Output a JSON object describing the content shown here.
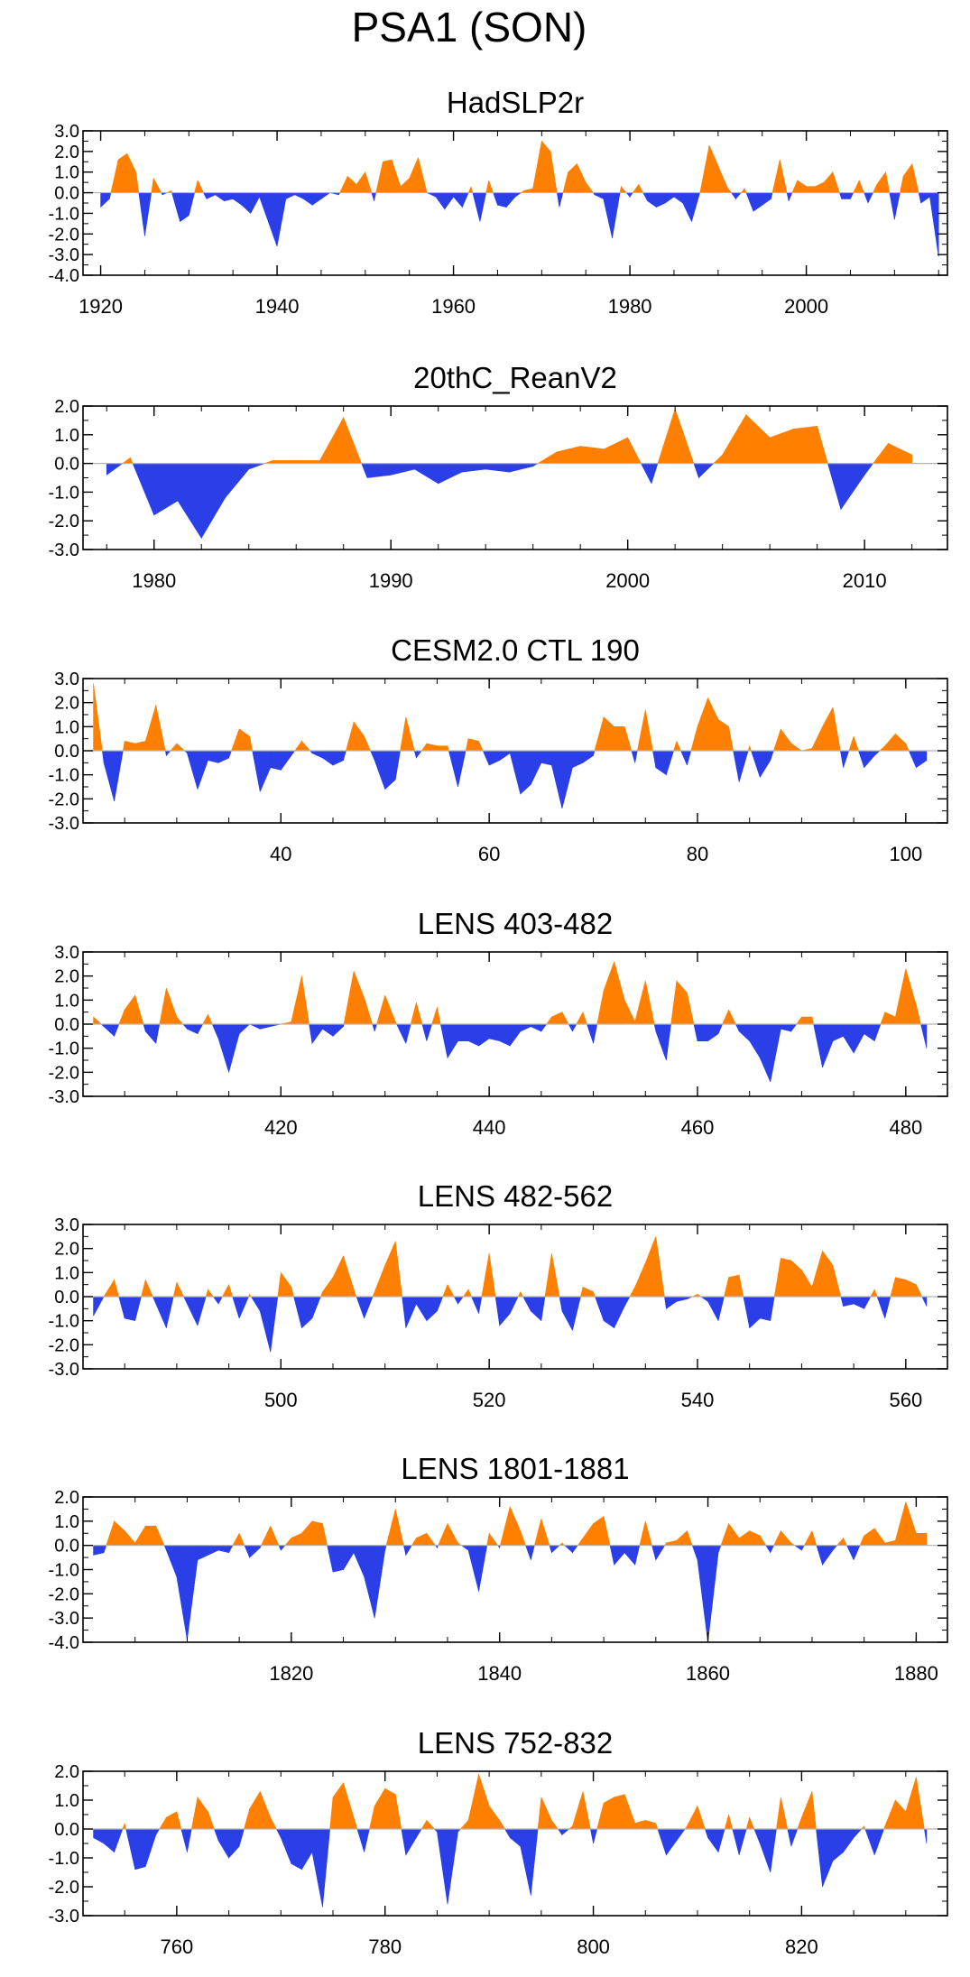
{
  "title": "PSA1 (SON)",
  "colors": {
    "positive": "#FF8000",
    "negative": "#2B3FE8",
    "axis": "#000000",
    "zero_line": "#B3B3B3"
  },
  "chart_data": [
    {
      "type": "area",
      "title": "HadSLP2r",
      "xlim": [
        1918,
        2016
      ],
      "ylim": [
        -4.0,
        3.0
      ],
      "yticks": [
        3.0,
        2.0,
        1.0,
        0.0,
        -1.0,
        -2.0,
        -3.0,
        -4.0
      ],
      "ytick_labels": [
        "3.0",
        "2.0",
        "1.0",
        "0.0",
        "-1.0",
        "-2.0",
        "-3.0",
        "-4.0"
      ],
      "xticks": [
        1920,
        1940,
        1960,
        1980,
        2000
      ],
      "xtick_labels": [
        "1920",
        "1940",
        "1960",
        "1980",
        "2000"
      ],
      "x": [
        1920,
        1921,
        1922,
        1923,
        1924,
        1925,
        1926,
        1927,
        1928,
        1929,
        1930,
        1931,
        1932,
        1933,
        1934,
        1935,
        1936,
        1937,
        1938,
        1939,
        1940,
        1941,
        1942,
        1943,
        1944,
        1945,
        1946,
        1947,
        1948,
        1949,
        1950,
        1951,
        1952,
        1953,
        1954,
        1955,
        1956,
        1957,
        1958,
        1959,
        1960,
        1961,
        1962,
        1963,
        1964,
        1965,
        1966,
        1967,
        1968,
        1969,
        1970,
        1971,
        1972,
        1973,
        1974,
        1975,
        1976,
        1977,
        1978,
        1979,
        1980,
        1981,
        1982,
        1983,
        1984,
        1985,
        1986,
        1987,
        1988,
        1989,
        1990,
        1991,
        1992,
        1993,
        1994,
        1995,
        1996,
        1997,
        1998,
        1999,
        2000,
        2001,
        2002,
        2003,
        2004,
        2005,
        2006,
        2007,
        2008,
        2009,
        2010,
        2011,
        2012,
        2013,
        2014,
        2015
      ],
      "values": [
        -0.7,
        -0.3,
        1.6,
        1.9,
        1.0,
        -2.1,
        0.7,
        -0.1,
        0.1,
        -1.4,
        -1.1,
        0.6,
        -0.3,
        -0.1,
        -0.4,
        -0.3,
        -0.6,
        -1.0,
        -0.2,
        -1.4,
        -2.6,
        -0.3,
        -0.1,
        -0.3,
        -0.6,
        -0.3,
        0.0,
        -0.1,
        0.8,
        0.4,
        1.0,
        -0.4,
        1.5,
        1.6,
        0.3,
        0.7,
        1.7,
        0.0,
        -0.2,
        -0.8,
        -0.2,
        -0.7,
        0.3,
        -1.4,
        0.6,
        -0.6,
        -0.7,
        -0.2,
        0.1,
        0.2,
        2.5,
        2.0,
        -0.7,
        1.0,
        1.4,
        0.5,
        -0.1,
        -0.3,
        -2.2,
        0.3,
        -0.2,
        0.4,
        -0.4,
        -0.7,
        -0.5,
        -0.2,
        -0.5,
        -1.4,
        0.1,
        2.3,
        1.3,
        0.3,
        -0.3,
        0.2,
        -0.9,
        -0.6,
        -0.3,
        1.6,
        -0.4,
        0.6,
        0.3,
        0.3,
        0.5,
        1.0,
        -0.3,
        -0.3,
        0.6,
        -0.5,
        0.4,
        1.0,
        -1.3,
        0.8,
        1.4,
        -0.5,
        -0.2,
        -3.1
      ]
    },
    {
      "type": "area",
      "title": "20thC_ReanV2",
      "xlim": [
        1977,
        2013.5
      ],
      "ylim": [
        -3.0,
        2.0
      ],
      "yticks": [
        2.0,
        1.0,
        0.0,
        -1.0,
        -2.0,
        -3.0
      ],
      "ytick_labels": [
        "2.0",
        "1.0",
        "0.0",
        "-1.0",
        "-2.0",
        "-3.0"
      ],
      "xticks": [
        1980,
        1990,
        2000,
        2010
      ],
      "xtick_labels": [
        "1980",
        "1990",
        "2000",
        "2010"
      ],
      "x": [
        1978,
        1979,
        1980,
        1981,
        1982,
        1983,
        1984,
        1985,
        1986,
        1987,
        1988,
        1989,
        1990,
        1991,
        1992,
        1993,
        1994,
        1995,
        1996,
        1997,
        1998,
        1999,
        2000,
        2001,
        2002,
        2003,
        2004,
        2005,
        2006,
        2007,
        2008,
        2009,
        2010,
        2011,
        2012
      ],
      "values": [
        -0.4,
        0.2,
        -1.8,
        -1.3,
        -2.6,
        -1.2,
        -0.2,
        0.1,
        0.1,
        0.1,
        1.6,
        -0.5,
        -0.4,
        -0.2,
        -0.7,
        -0.3,
        -0.2,
        -0.3,
        -0.1,
        0.4,
        0.6,
        0.5,
        0.9,
        -0.7,
        1.9,
        -0.5,
        0.3,
        1.7,
        0.9,
        1.2,
        1.3,
        -1.6,
        -0.4,
        0.7,
        0.3
      ]
    },
    {
      "type": "area",
      "title": "CESM2.0 CTL 190",
      "xlim": [
        21,
        104
      ],
      "ylim": [
        -3.0,
        3.0
      ],
      "yticks": [
        3.0,
        2.0,
        1.0,
        0.0,
        -1.0,
        -2.0,
        -3.0
      ],
      "ytick_labels": [
        "3.0",
        "2.0",
        "1.0",
        "0.0",
        "-1.0",
        "-2.0",
        "-3.0"
      ],
      "xticks": [
        40,
        60,
        80,
        100
      ],
      "xtick_labels": [
        "40",
        "60",
        "80",
        "100"
      ],
      "x": [
        22,
        23,
        24,
        25,
        26,
        27,
        28,
        29,
        30,
        31,
        32,
        33,
        34,
        35,
        36,
        37,
        38,
        39,
        40,
        41,
        42,
        43,
        44,
        45,
        46,
        47,
        48,
        49,
        50,
        51,
        52,
        53,
        54,
        55,
        56,
        57,
        58,
        59,
        60,
        61,
        62,
        63,
        64,
        65,
        66,
        67,
        68,
        69,
        70,
        71,
        72,
        73,
        74,
        75,
        76,
        77,
        78,
        79,
        80,
        81,
        82,
        83,
        84,
        85,
        86,
        87,
        88,
        89,
        90,
        91,
        92,
        93,
        94,
        95,
        96,
        97,
        98,
        99,
        100,
        101,
        102
      ],
      "values": [
        2.8,
        -0.5,
        -2.1,
        0.4,
        0.3,
        0.4,
        1.9,
        -0.2,
        0.3,
        -0.1,
        -1.6,
        -0.4,
        -0.5,
        -0.3,
        0.9,
        0.6,
        -1.7,
        -0.7,
        -0.8,
        -0.2,
        0.4,
        -0.1,
        -0.3,
        -0.6,
        -0.4,
        1.2,
        0.6,
        -0.4,
        -1.6,
        -1.2,
        1.4,
        -0.3,
        0.3,
        0.2,
        0.2,
        -1.5,
        0.5,
        0.4,
        -0.6,
        -0.4,
        -0.1,
        -1.8,
        -1.4,
        -0.5,
        -0.6,
        -2.4,
        -0.7,
        -0.5,
        -0.2,
        1.4,
        1.0,
        1.0,
        -0.5,
        1.7,
        -0.7,
        -1.0,
        0.4,
        -0.6,
        1.0,
        2.2,
        1.3,
        1.0,
        -1.3,
        0.2,
        -1.1,
        -0.4,
        0.9,
        0.3,
        0.0,
        0.1,
        1.0,
        1.8,
        -0.7,
        0.6,
        -0.7,
        -0.2,
        0.2,
        0.7,
        0.3,
        -0.7,
        -0.4
      ]
    },
    {
      "type": "area",
      "title": "LENS 403-482",
      "xlim": [
        401,
        484
      ],
      "ylim": [
        -3.0,
        3.0
      ],
      "yticks": [
        3.0,
        2.0,
        1.0,
        0.0,
        -1.0,
        -2.0,
        -3.0
      ],
      "ytick_labels": [
        "3.0",
        "2.0",
        "1.0",
        "0.0",
        "-1.0",
        "-2.0",
        "-3.0"
      ],
      "xticks": [
        420,
        440,
        460,
        480
      ],
      "xtick_labels": [
        "420",
        "440",
        "460",
        "480"
      ],
      "x": [
        402,
        403,
        404,
        405,
        406,
        407,
        408,
        409,
        410,
        411,
        412,
        413,
        414,
        415,
        416,
        417,
        418,
        419,
        420,
        421,
        422,
        423,
        424,
        425,
        426,
        427,
        428,
        429,
        430,
        431,
        432,
        433,
        434,
        435,
        436,
        437,
        438,
        439,
        440,
        441,
        442,
        443,
        444,
        445,
        446,
        447,
        448,
        449,
        450,
        451,
        452,
        453,
        454,
        455,
        456,
        457,
        458,
        459,
        460,
        461,
        462,
        463,
        464,
        465,
        466,
        467,
        468,
        469,
        470,
        471,
        472,
        473,
        474,
        475,
        476,
        477,
        478,
        479,
        480,
        481,
        482
      ],
      "values": [
        0.3,
        -0.1,
        -0.5,
        0.6,
        1.2,
        -0.3,
        -0.8,
        1.5,
        0.3,
        -0.2,
        -0.4,
        0.4,
        -0.6,
        -2.0,
        -0.4,
        0.0,
        -0.2,
        -0.1,
        0.0,
        0.1,
        2.0,
        -0.8,
        -0.2,
        -0.5,
        -0.1,
        2.2,
        1.1,
        -0.3,
        1.2,
        0.1,
        -0.8,
        0.9,
        -0.7,
        0.7,
        -1.4,
        -0.7,
        -0.7,
        -0.9,
        -0.6,
        -0.7,
        -0.9,
        -0.3,
        -0.1,
        -0.3,
        0.3,
        0.5,
        -0.3,
        0.5,
        -0.8,
        1.4,
        2.6,
        1.0,
        0.1,
        1.8,
        -0.3,
        -1.5,
        1.8,
        1.3,
        -0.7,
        -0.7,
        -0.4,
        0.6,
        -0.3,
        -0.7,
        -1.4,
        -2.4,
        -0.2,
        -0.3,
        0.3,
        0.3,
        -1.8,
        -0.7,
        -0.5,
        -1.2,
        -0.4,
        -0.7,
        0.5,
        0.3,
        2.3,
        0.8,
        -1.0
      ]
    },
    {
      "type": "area",
      "title": "LENS 482-562",
      "xlim": [
        481,
        564
      ],
      "ylim": [
        -3.0,
        3.0
      ],
      "yticks": [
        3.0,
        2.0,
        1.0,
        0.0,
        -1.0,
        -2.0,
        -3.0
      ],
      "ytick_labels": [
        "3.0",
        "2.0",
        "1.0",
        "0.0",
        "-1.0",
        "-2.0",
        "-3.0"
      ],
      "xticks": [
        500,
        520,
        540,
        560
      ],
      "xtick_labels": [
        "500",
        "520",
        "540",
        "560"
      ],
      "x": [
        482,
        483,
        484,
        485,
        486,
        487,
        488,
        489,
        490,
        491,
        492,
        493,
        494,
        495,
        496,
        497,
        498,
        499,
        500,
        501,
        502,
        503,
        504,
        505,
        506,
        507,
        508,
        509,
        510,
        511,
        512,
        513,
        514,
        515,
        516,
        517,
        518,
        519,
        520,
        521,
        522,
        523,
        524,
        525,
        526,
        527,
        528,
        529,
        530,
        531,
        532,
        533,
        534,
        535,
        536,
        537,
        538,
        539,
        540,
        541,
        542,
        543,
        544,
        545,
        546,
        547,
        548,
        549,
        550,
        551,
        552,
        553,
        554,
        555,
        556,
        557,
        558,
        559,
        560,
        561,
        562
      ],
      "values": [
        -0.8,
        0.0,
        0.7,
        -0.9,
        -1.0,
        0.7,
        -0.3,
        -1.3,
        0.6,
        -0.3,
        -1.2,
        0.3,
        -0.3,
        0.5,
        -0.9,
        0.1,
        -0.6,
        -2.3,
        1.0,
        0.4,
        -1.3,
        -0.9,
        0.2,
        0.8,
        1.7,
        0.3,
        -0.9,
        0.2,
        1.3,
        2.3,
        -1.3,
        -0.3,
        -1.0,
        -0.6,
        0.5,
        -0.3,
        0.3,
        -0.7,
        1.8,
        -1.2,
        -0.7,
        0.2,
        -0.6,
        -1.0,
        1.8,
        -0.6,
        -1.4,
        0.4,
        0.2,
        -1.0,
        -1.3,
        -0.4,
        0.4,
        1.4,
        2.5,
        -0.5,
        -0.2,
        -0.1,
        0.1,
        -0.2,
        -1.0,
        0.8,
        0.9,
        -1.3,
        -0.9,
        -1.0,
        1.6,
        1.5,
        1.1,
        0.4,
        1.9,
        1.3,
        -0.4,
        -0.3,
        -0.5,
        0.3,
        -0.9,
        0.8,
        0.7,
        0.5,
        -0.4
      ]
    },
    {
      "type": "area",
      "title": "LENS 1801-1881",
      "xlim": [
        1800,
        1883
      ],
      "ylim": [
        -4.0,
        2.0
      ],
      "yticks": [
        2.0,
        1.0,
        0.0,
        -1.0,
        -2.0,
        -3.0,
        -4.0
      ],
      "ytick_labels": [
        "2.0",
        "1.0",
        "0.0",
        "-1.0",
        "-2.0",
        "-3.0",
        "-4.0"
      ],
      "xticks": [
        1820,
        1840,
        1860,
        1880
      ],
      "xtick_labels": [
        "1820",
        "1840",
        "1860",
        "1880"
      ],
      "x": [
        1801,
        1802,
        1803,
        1804,
        1805,
        1806,
        1807,
        1808,
        1809,
        1810,
        1811,
        1812,
        1813,
        1814,
        1815,
        1816,
        1817,
        1818,
        1819,
        1820,
        1821,
        1822,
        1823,
        1824,
        1825,
        1826,
        1827,
        1828,
        1829,
        1830,
        1831,
        1832,
        1833,
        1834,
        1835,
        1836,
        1837,
        1838,
        1839,
        1840,
        1841,
        1842,
        1843,
        1844,
        1845,
        1846,
        1847,
        1848,
        1849,
        1850,
        1851,
        1852,
        1853,
        1854,
        1855,
        1856,
        1857,
        1858,
        1859,
        1860,
        1861,
        1862,
        1863,
        1864,
        1865,
        1866,
        1867,
        1868,
        1869,
        1870,
        1871,
        1872,
        1873,
        1874,
        1875,
        1876,
        1877,
        1878,
        1879,
        1880,
        1881
      ],
      "values": [
        -0.4,
        -0.3,
        1.0,
        0.6,
        0.1,
        0.8,
        0.8,
        -0.2,
        -1.3,
        -3.9,
        -0.6,
        -0.4,
        -0.2,
        -0.3,
        0.5,
        -0.5,
        -0.1,
        0.8,
        -0.2,
        0.3,
        0.5,
        1.0,
        0.9,
        -1.1,
        -1.0,
        -0.3,
        -1.3,
        -3.0,
        -0.2,
        1.5,
        -0.4,
        0.3,
        0.5,
        -0.1,
        0.9,
        0.1,
        -0.2,
        -1.9,
        0.5,
        -0.1,
        1.6,
        0.6,
        -0.6,
        1.1,
        -0.3,
        0.1,
        -0.3,
        0.3,
        0.9,
        1.2,
        -0.8,
        -0.3,
        -0.8,
        1.0,
        -0.6,
        0.1,
        0.2,
        0.6,
        -0.6,
        -4.0,
        -0.3,
        0.9,
        0.3,
        0.6,
        0.4,
        -0.3,
        0.6,
        0.1,
        -0.2,
        0.6,
        -0.8,
        -0.2,
        0.3,
        -0.6,
        0.4,
        0.7,
        0.1,
        0.2,
        1.8,
        0.5,
        0.5
      ]
    },
    {
      "type": "area",
      "title": "LENS 752-832",
      "xlim": [
        751,
        834
      ],
      "ylim": [
        -3.0,
        2.0
      ],
      "yticks": [
        2.0,
        1.0,
        0.0,
        -1.0,
        -2.0,
        -3.0
      ],
      "ytick_labels": [
        "2.0",
        "1.0",
        "0.0",
        "-1.0",
        "-2.0",
        "-3.0"
      ],
      "xticks": [
        760,
        780,
        800,
        820
      ],
      "xtick_labels": [
        "760",
        "780",
        "800",
        "820"
      ],
      "x": [
        752,
        753,
        754,
        755,
        756,
        757,
        758,
        759,
        760,
        761,
        762,
        763,
        764,
        765,
        766,
        767,
        768,
        769,
        770,
        771,
        772,
        773,
        774,
        775,
        776,
        777,
        778,
        779,
        780,
        781,
        782,
        783,
        784,
        785,
        786,
        787,
        788,
        789,
        790,
        791,
        792,
        793,
        794,
        795,
        796,
        797,
        798,
        799,
        800,
        801,
        802,
        803,
        804,
        805,
        806,
        807,
        808,
        809,
        810,
        811,
        812,
        813,
        814,
        815,
        816,
        817,
        818,
        819,
        820,
        821,
        822,
        823,
        824,
        825,
        826,
        827,
        828,
        829,
        830,
        831,
        832
      ],
      "values": [
        -0.3,
        -0.5,
        -0.8,
        0.2,
        -1.4,
        -1.3,
        -0.2,
        0.4,
        0.6,
        -0.8,
        1.1,
        0.6,
        -0.4,
        -1.0,
        -0.6,
        0.7,
        1.3,
        0.4,
        -0.3,
        -1.2,
        -1.4,
        -0.8,
        -2.7,
        1.1,
        1.6,
        0.4,
        -0.8,
        0.8,
        1.4,
        1.2,
        -0.9,
        -0.3,
        0.3,
        -0.1,
        -2.6,
        -0.1,
        0.3,
        1.9,
        0.8,
        0.3,
        -0.3,
        -0.6,
        -2.3,
        1.1,
        0.3,
        -0.2,
        0.1,
        1.3,
        -0.5,
        0.9,
        1.1,
        1.2,
        0.2,
        0.3,
        0.2,
        -0.9,
        -0.4,
        0.1,
        0.8,
        -0.3,
        -0.8,
        0.5,
        -0.9,
        0.4,
        -0.5,
        -1.5,
        1.1,
        -0.6,
        0.4,
        1.3,
        -2.0,
        -1.1,
        -0.8,
        -0.3,
        0.1,
        -0.9,
        0.1,
        1.0,
        0.6,
        1.8,
        -0.5
      ]
    }
  ]
}
